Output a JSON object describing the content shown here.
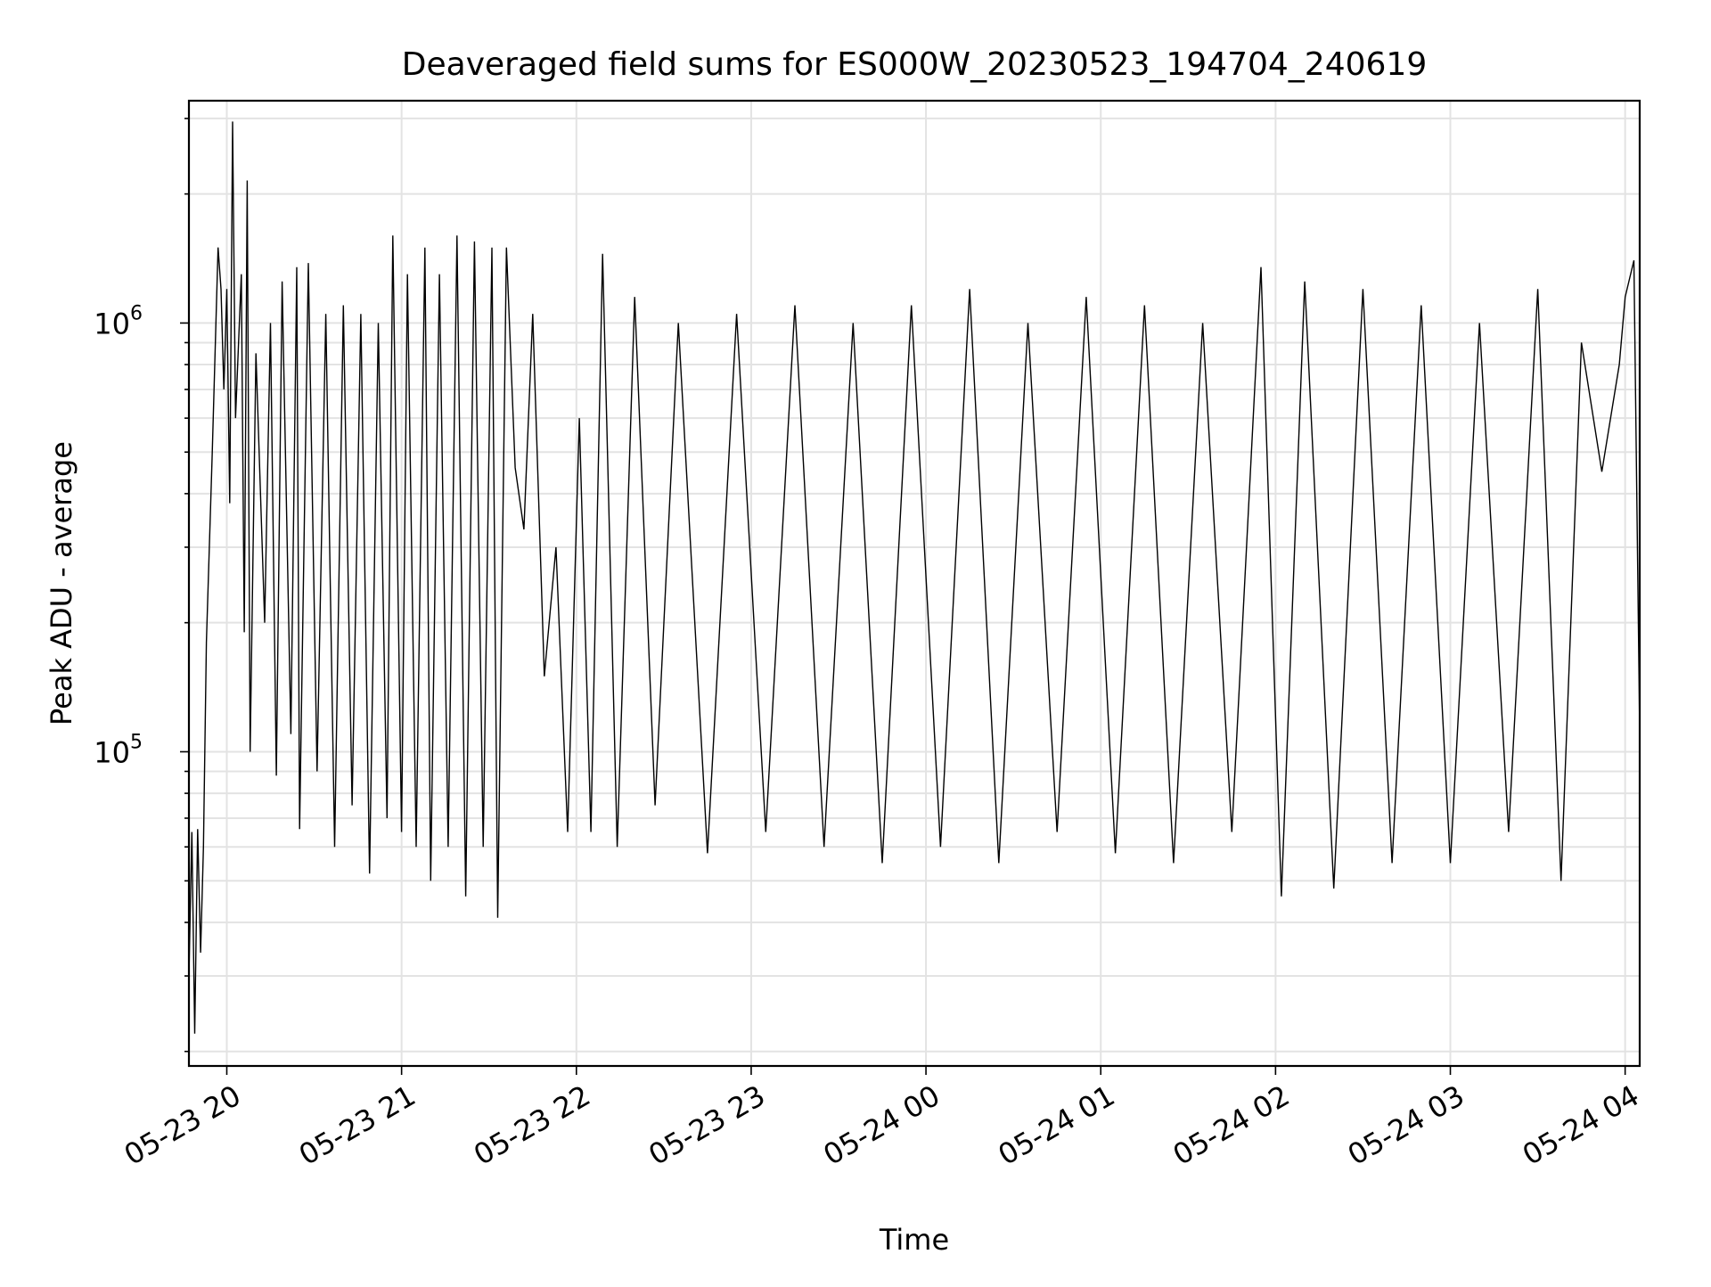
{
  "chart_data": {
    "type": "line",
    "title": "Deaveraged field sums for ES000W_20230523_194704_240619",
    "xlabel": "Time",
    "ylabel": "Peak ADU - average",
    "y_scale": "log",
    "y_tick_labels": [
      {
        "base": "10",
        "exp": "5",
        "value": 100000
      },
      {
        "base": "10",
        "exp": "6",
        "value": 1000000
      }
    ],
    "x_tick_labels": [
      "05-23 20",
      "05-23 21",
      "05-23 22",
      "05-23 23",
      "05-24 00",
      "05-24 01",
      "05-24 02",
      "05-24 03",
      "05-24 04"
    ],
    "xlim": [
      "2023-05-23 19:47",
      "2023-05-24 04:05"
    ],
    "ylim": [
      18500,
      3300000
    ],
    "grid": true,
    "line_color": "#000000",
    "series": [
      {
        "x_start": "2023-05-23 19:47",
        "x_end": "2023-05-24 04:05",
        "points": [
          [
            "2023-05-23 19:47",
            30000
          ],
          [
            "2023-05-23 19:48",
            65000
          ],
          [
            "2023-05-23 19:49",
            22000
          ],
          [
            "2023-05-23 19:50",
            66000
          ],
          [
            "2023-05-23 19:51",
            34000
          ],
          [
            "2023-05-23 19:52",
            60000
          ],
          [
            "2023-05-23 19:53",
            180000
          ],
          [
            "2023-05-23 19:55",
            500000
          ],
          [
            "2023-05-23 19:57",
            1500000
          ],
          [
            "2023-05-23 19:58",
            1200000
          ],
          [
            "2023-05-23 19:59",
            700000
          ],
          [
            "2023-05-23 20:00",
            1200000
          ],
          [
            "2023-05-23 20:01",
            380000
          ],
          [
            "2023-05-23 20:02",
            2950000
          ],
          [
            "2023-05-23 20:03",
            600000
          ],
          [
            "2023-05-23 20:05",
            1300000
          ],
          [
            "2023-05-23 20:06",
            190000
          ],
          [
            "2023-05-23 20:07",
            2150000
          ],
          [
            "2023-05-23 20:08",
            100000
          ],
          [
            "2023-05-23 20:10",
            850000
          ],
          [
            "2023-05-23 20:13",
            200000
          ],
          [
            "2023-05-23 20:15",
            1000000
          ],
          [
            "2023-05-23 20:17",
            88000
          ],
          [
            "2023-05-23 20:19",
            1250000
          ],
          [
            "2023-05-23 20:22",
            110000
          ],
          [
            "2023-05-23 20:24",
            1350000
          ],
          [
            "2023-05-23 20:25",
            66000
          ],
          [
            "2023-05-23 20:28",
            1380000
          ],
          [
            "2023-05-23 20:31",
            90000
          ],
          [
            "2023-05-23 20:34",
            1050000
          ],
          [
            "2023-05-23 20:37",
            60000
          ],
          [
            "2023-05-23 20:40",
            1100000
          ],
          [
            "2023-05-23 20:43",
            75000
          ],
          [
            "2023-05-23 20:46",
            1050000
          ],
          [
            "2023-05-23 20:49",
            52000
          ],
          [
            "2023-05-23 20:52",
            1000000
          ],
          [
            "2023-05-23 20:55",
            70000
          ],
          [
            "2023-05-23 20:57",
            1600000
          ],
          [
            "2023-05-23 21:00",
            65000
          ],
          [
            "2023-05-23 21:02",
            1300000
          ],
          [
            "2023-05-23 21:05",
            60000
          ],
          [
            "2023-05-23 21:08",
            1500000
          ],
          [
            "2023-05-23 21:10",
            50000
          ],
          [
            "2023-05-23 21:13",
            1300000
          ],
          [
            "2023-05-23 21:16",
            60000
          ],
          [
            "2023-05-23 21:19",
            1600000
          ],
          [
            "2023-05-23 21:22",
            46000
          ],
          [
            "2023-05-23 21:25",
            1550000
          ],
          [
            "2023-05-23 21:28",
            60000
          ],
          [
            "2023-05-23 21:31",
            1500000
          ],
          [
            "2023-05-23 21:33",
            41000
          ],
          [
            "2023-05-23 21:36",
            1500000
          ],
          [
            "2023-05-23 21:39",
            460000
          ],
          [
            "2023-05-23 21:42",
            330000
          ],
          [
            "2023-05-23 21:45",
            1050000
          ],
          [
            "2023-05-23 21:49",
            150000
          ],
          [
            "2023-05-23 21:53",
            300000
          ],
          [
            "2023-05-23 21:57",
            65000
          ],
          [
            "2023-05-23 22:01",
            600000
          ],
          [
            "2023-05-23 22:05",
            65000
          ],
          [
            "2023-05-23 22:09",
            1450000
          ],
          [
            "2023-05-23 22:14",
            60000
          ],
          [
            "2023-05-23 22:20",
            1150000
          ],
          [
            "2023-05-23 22:27",
            75000
          ],
          [
            "2023-05-23 22:35",
            1000000
          ],
          [
            "2023-05-23 22:45",
            58000
          ],
          [
            "2023-05-23 22:55",
            1050000
          ],
          [
            "2023-05-23 23:05",
            65000
          ],
          [
            "2023-05-23 23:15",
            1100000
          ],
          [
            "2023-05-23 23:25",
            60000
          ],
          [
            "2023-05-23 23:35",
            1000000
          ],
          [
            "2023-05-23 23:45",
            55000
          ],
          [
            "2023-05-23 23:55",
            1100000
          ],
          [
            "2023-05-24 00:05",
            60000
          ],
          [
            "2023-05-24 00:15",
            1200000
          ],
          [
            "2023-05-24 00:25",
            55000
          ],
          [
            "2023-05-24 00:35",
            1000000
          ],
          [
            "2023-05-24 00:45",
            65000
          ],
          [
            "2023-05-24 00:55",
            1150000
          ],
          [
            "2023-05-24 01:05",
            58000
          ],
          [
            "2023-05-24 01:15",
            1100000
          ],
          [
            "2023-05-24 01:25",
            55000
          ],
          [
            "2023-05-24 01:35",
            1000000
          ],
          [
            "2023-05-24 01:45",
            65000
          ],
          [
            "2023-05-24 01:55",
            1350000
          ],
          [
            "2023-05-24 02:02",
            46000
          ],
          [
            "2023-05-24 02:10",
            1250000
          ],
          [
            "2023-05-24 02:20",
            48000
          ],
          [
            "2023-05-24 02:30",
            1200000
          ],
          [
            "2023-05-24 02:40",
            55000
          ],
          [
            "2023-05-24 02:50",
            1100000
          ],
          [
            "2023-05-24 03:00",
            55000
          ],
          [
            "2023-05-24 03:10",
            1000000
          ],
          [
            "2023-05-24 03:20",
            65000
          ],
          [
            "2023-05-24 03:30",
            1200000
          ],
          [
            "2023-05-24 03:38",
            50000
          ],
          [
            "2023-05-24 03:45",
            900000
          ],
          [
            "2023-05-24 03:52",
            450000
          ],
          [
            "2023-05-24 03:58",
            800000
          ],
          [
            "2023-05-24 04:00",
            1150000
          ],
          [
            "2023-05-24 04:03",
            1400000
          ],
          [
            "2023-05-24 04:05",
            110000
          ]
        ]
      }
    ]
  }
}
